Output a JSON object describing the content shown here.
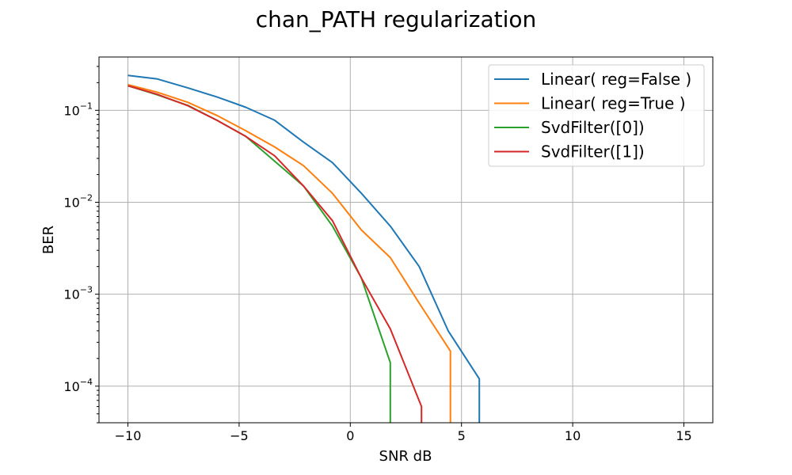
{
  "chart_data": {
    "type": "line",
    "title": "chan_PATH regularization",
    "xlabel": "SNR dB",
    "ylabel": "BER",
    "yscale": "log",
    "xlim": [
      -11.3,
      16.3
    ],
    "ylim": [
      4e-05,
      0.38
    ],
    "grid": true,
    "legend_position": "top-right",
    "x_ticks": [
      {
        "value": -10,
        "label": "−10"
      },
      {
        "value": -5,
        "label": "−5"
      },
      {
        "value": 0,
        "label": "0"
      },
      {
        "value": 5,
        "label": "5"
      },
      {
        "value": 10,
        "label": "10"
      },
      {
        "value": 15,
        "label": "15"
      }
    ],
    "y_ticks": [
      {
        "value": 0.1,
        "base": "10",
        "exp": "−1"
      },
      {
        "value": 0.01,
        "base": "10",
        "exp": "−2"
      },
      {
        "value": 0.001,
        "base": "10",
        "exp": "−3"
      },
      {
        "value": 0.0001,
        "base": "10",
        "exp": "−4"
      }
    ],
    "series": [
      {
        "name": "Linear( reg=False )",
        "color": "#1f77b4",
        "x": [
          -10,
          -8.7,
          -7.3,
          -6.0,
          -4.7,
          -3.4,
          -2.1,
          -0.8,
          0.5,
          1.8,
          3.1,
          4.4,
          5.8,
          5.8
        ],
        "y": [
          0.24,
          0.22,
          0.175,
          0.14,
          0.108,
          0.078,
          0.045,
          0.027,
          0.0125,
          0.0055,
          0.002,
          0.0004,
          0.00012,
          4e-05
        ]
      },
      {
        "name": "Linear( reg=True )",
        "color": "#ff7f0e",
        "x": [
          -10,
          -8.7,
          -7.3,
          -6.0,
          -4.7,
          -3.4,
          -2.1,
          -0.8,
          0.5,
          1.8,
          3.1,
          4.5,
          4.5
        ],
        "y": [
          0.19,
          0.158,
          0.122,
          0.088,
          0.06,
          0.04,
          0.025,
          0.0125,
          0.005,
          0.0025,
          0.0008,
          0.00024,
          4e-05
        ]
      },
      {
        "name": "SvdFilter([0])",
        "color": "#2ca02c",
        "x": [
          -10,
          -8.7,
          -7.3,
          -6.0,
          -4.7,
          -3.4,
          -2.1,
          -0.8,
          0.5,
          1.8,
          1.8
        ],
        "y": [
          0.185,
          0.148,
          0.113,
          0.078,
          0.052,
          0.028,
          0.015,
          0.0055,
          0.0015,
          0.00018,
          4e-05
        ]
      },
      {
        "name": "SvdFilter([1])",
        "color": "#d62728",
        "x": [
          -10,
          -8.7,
          -7.3,
          -6.0,
          -4.7,
          -3.4,
          -2.1,
          -0.8,
          0.5,
          1.8,
          3.2,
          3.2
        ],
        "y": [
          0.185,
          0.15,
          0.112,
          0.078,
          0.052,
          0.032,
          0.015,
          0.0063,
          0.0015,
          0.00042,
          6e-05,
          4e-05
        ]
      }
    ]
  }
}
